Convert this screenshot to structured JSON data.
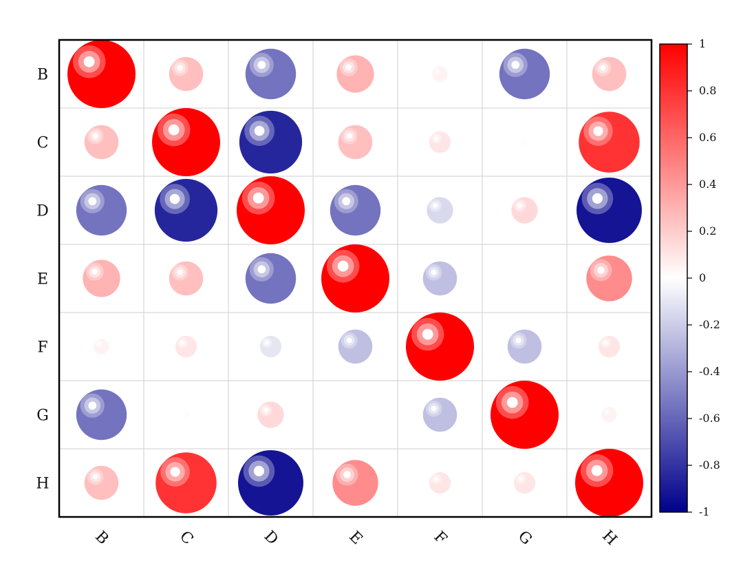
{
  "chart_data": {
    "type": "heatmap",
    "style": "bubble correlation matrix",
    "row_labels": [
      "B",
      "C",
      "D",
      "E",
      "F",
      "G",
      "H"
    ],
    "col_labels": [
      "B",
      "C",
      "D",
      "E",
      "F",
      "G",
      "H"
    ],
    "values": [
      [
        1.0,
        0.25,
        -0.55,
        0.3,
        0.05,
        -0.55,
        0.25
      ],
      [
        0.25,
        1.0,
        -0.85,
        0.25,
        0.1,
        0.01,
        0.8
      ],
      [
        -0.55,
        -0.85,
        1.0,
        -0.55,
        -0.15,
        0.15,
        -0.92
      ],
      [
        0.3,
        0.25,
        -0.55,
        1.0,
        -0.25,
        0.0,
        0.45
      ],
      [
        0.05,
        0.1,
        -0.1,
        -0.25,
        1.0,
        -0.25,
        0.1
      ],
      [
        -0.55,
        0.01,
        0.15,
        0.0,
        -0.25,
        1.0,
        0.05
      ],
      [
        0.25,
        0.8,
        -0.92,
        0.45,
        0.1,
        0.1,
        1.0
      ]
    ],
    "colorbar": {
      "range": [
        -1,
        1
      ],
      "ticks": [
        "1",
        "0.8",
        "0.6",
        "0.4",
        "0.2",
        "0",
        "-0.2",
        "-0.4",
        "-0.6",
        "-0.8",
        "-1"
      ],
      "colors": {
        "negative": "#00008b",
        "zero": "#ffffff",
        "positive": "#ff0000"
      }
    },
    "grid": true,
    "legend": "right"
  }
}
